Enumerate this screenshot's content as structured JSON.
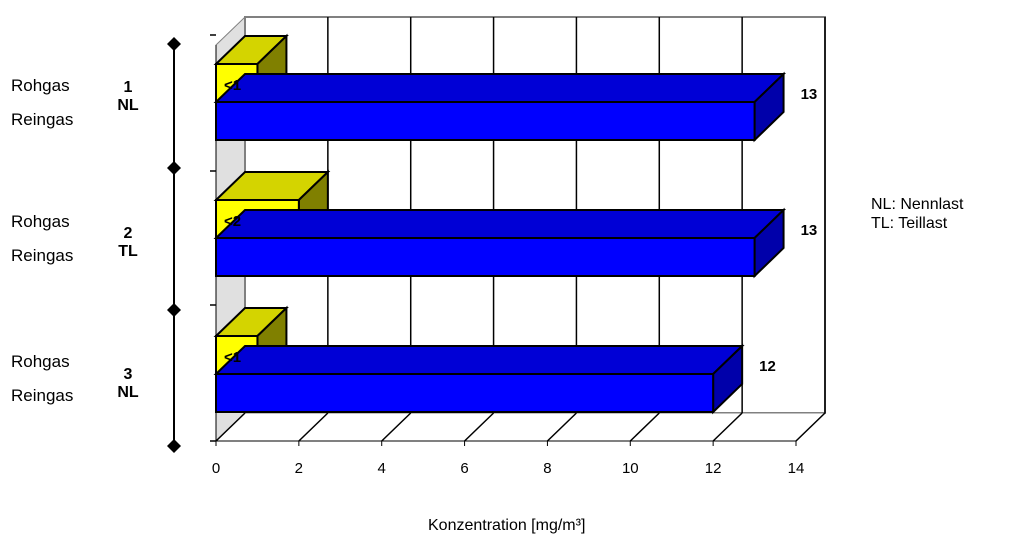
{
  "chart_data": {
    "type": "bar",
    "orientation": "horizontal",
    "three_d": true,
    "xlabel": "Konzentration [mg/m³]",
    "xlim": [
      0,
      14
    ],
    "x_ticks": [
      "0",
      "2",
      "4",
      "6",
      "8",
      "10",
      "12",
      "14"
    ],
    "grid": "vertical",
    "groups": [
      {
        "id": "1",
        "mode": "NL",
        "row_labels": [
          "Rohgas",
          "Reingas"
        ]
      },
      {
        "id": "2",
        "mode": "TL",
        "row_labels": [
          "Rohgas",
          "Reingas"
        ]
      },
      {
        "id": "3",
        "mode": "NL",
        "row_labels": [
          "Rohgas",
          "Reingas"
        ]
      }
    ],
    "series": [
      {
        "name": "Rohgas",
        "color": "#0000ff",
        "values": [
          13,
          13,
          12
        ],
        "labels": [
          "13",
          "13",
          "12"
        ]
      },
      {
        "name": "Reingas",
        "color": "#ffff00",
        "values": [
          1,
          2,
          1
        ],
        "labels": [
          "<1",
          "<2",
          "<1"
        ]
      }
    ],
    "legend_note": [
      "NL: Nennlast",
      "TL: Teillast"
    ],
    "legend_placement": "right"
  },
  "colors": {
    "bar_front": "#0000ff",
    "bar_top": "#0000d6",
    "bar_side": "#0000aa",
    "small_front": "#ffff00",
    "small_top": "#d4d400",
    "small_side": "#808000",
    "wall": "#e0e0e0"
  }
}
